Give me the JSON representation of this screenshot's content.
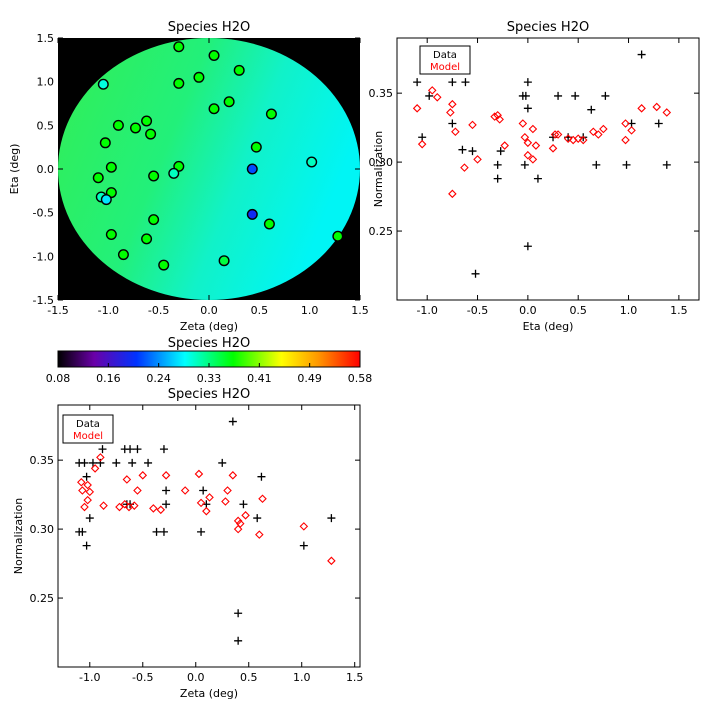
{
  "chart_data": [
    {
      "id": "map",
      "type": "scatter",
      "title": "Species H2O",
      "xlabel": "Zeta (deg)",
      "ylabel": "Eta (deg)",
      "xlim": [
        -1.5,
        1.5
      ],
      "ylim": [
        -1.5,
        1.5
      ],
      "xticks": [
        "-1.5",
        "-1.0",
        "-0.5",
        "0.0",
        "0.5",
        "1.0",
        "1.5"
      ],
      "yticks": [
        "-1.5",
        "-1.0",
        "-0.5",
        "0.0",
        "0.5",
        "1.0",
        "1.5"
      ],
      "points": [
        {
          "x": -1.05,
          "y": 0.97,
          "v": 0.3
        },
        {
          "x": -0.3,
          "y": 1.4,
          "v": 0.37
        },
        {
          "x": 0.05,
          "y": 1.3,
          "v": 0.37
        },
        {
          "x": 0.3,
          "y": 1.13,
          "v": 0.37
        },
        {
          "x": -0.1,
          "y": 1.05,
          "v": 0.37
        },
        {
          "x": -0.3,
          "y": 0.98,
          "v": 0.37
        },
        {
          "x": 0.05,
          "y": 0.69,
          "v": 0.37
        },
        {
          "x": 0.2,
          "y": 0.77,
          "v": 0.37
        },
        {
          "x": 0.62,
          "y": 0.63,
          "v": 0.37
        },
        {
          "x": -0.9,
          "y": 0.5,
          "v": 0.37
        },
        {
          "x": -0.62,
          "y": 0.55,
          "v": 0.37
        },
        {
          "x": -0.73,
          "y": 0.47,
          "v": 0.37
        },
        {
          "x": -0.58,
          "y": 0.4,
          "v": 0.37
        },
        {
          "x": -1.03,
          "y": 0.3,
          "v": 0.37
        },
        {
          "x": 0.47,
          "y": 0.25,
          "v": 0.37
        },
        {
          "x": 1.02,
          "y": 0.08,
          "v": 0.31
        },
        {
          "x": -0.97,
          "y": 0.02,
          "v": 0.37
        },
        {
          "x": -0.3,
          "y": 0.03,
          "v": 0.37
        },
        {
          "x": -0.35,
          "y": -0.05,
          "v": 0.31
        },
        {
          "x": 0.43,
          "y": 0.0,
          "v": 0.22
        },
        {
          "x": -1.1,
          "y": -0.1,
          "v": 0.37
        },
        {
          "x": -0.55,
          "y": -0.08,
          "v": 0.37
        },
        {
          "x": -0.97,
          "y": -0.27,
          "v": 0.37
        },
        {
          "x": -1.07,
          "y": -0.32,
          "v": 0.31
        },
        {
          "x": -1.02,
          "y": -0.35,
          "v": 0.28
        },
        {
          "x": 0.43,
          "y": -0.52,
          "v": 0.2
        },
        {
          "x": -0.55,
          "y": -0.58,
          "v": 0.37
        },
        {
          "x": 0.6,
          "y": -0.63,
          "v": 0.37
        },
        {
          "x": -0.97,
          "y": -0.75,
          "v": 0.37
        },
        {
          "x": -0.62,
          "y": -0.8,
          "v": 0.37
        },
        {
          "x": 1.28,
          "y": -0.77,
          "v": 0.37
        },
        {
          "x": -0.85,
          "y": -0.98,
          "v": 0.37
        },
        {
          "x": 0.15,
          "y": -1.05,
          "v": 0.35
        },
        {
          "x": -0.45,
          "y": -1.1,
          "v": 0.37
        }
      ]
    },
    {
      "id": "colorbar",
      "type": "heatmap",
      "title": "Species H2O",
      "ticks": [
        "0.08",
        "0.16",
        "0.24",
        "0.33",
        "0.41",
        "0.49",
        "0.58"
      ],
      "range": [
        0.08,
        0.58
      ]
    },
    {
      "id": "eta",
      "type": "scatter",
      "title": "Species H2O",
      "xlabel": "Eta (deg)",
      "ylabel": "Normalization",
      "xlim": [
        -1.3,
        1.7
      ],
      "ylim": [
        0.2,
        0.39
      ],
      "xticks": [
        "-1.0",
        "-0.5",
        "0.0",
        "0.5",
        "1.0",
        "1.5"
      ],
      "yticks": [
        "0.25",
        "0.30",
        "0.35"
      ],
      "legend": [
        "Data",
        "Model"
      ],
      "legend_position": "top-left",
      "series": [
        {
          "name": "Data",
          "marker": "plus",
          "color": "#000000",
          "points": [
            [
              -1.1,
              0.358
            ],
            [
              -0.98,
              0.348
            ],
            [
              -1.05,
              0.318
            ],
            [
              -0.75,
              0.358
            ],
            [
              -0.75,
              0.328
            ],
            [
              -0.62,
              0.358
            ],
            [
              -0.65,
              0.309
            ],
            [
              -0.55,
              0.308
            ],
            [
              -0.52,
              0.219
            ],
            [
              -0.3,
              0.288
            ],
            [
              -0.3,
              0.298
            ],
            [
              -0.27,
              0.308
            ],
            [
              -0.05,
              0.348
            ],
            [
              -0.02,
              0.348
            ],
            [
              0.0,
              0.358
            ],
            [
              0.0,
              0.339
            ],
            [
              -0.03,
              0.298
            ],
            [
              0.0,
              0.239
            ],
            [
              0.1,
              0.288
            ],
            [
              0.25,
              0.318
            ],
            [
              0.3,
              0.348
            ],
            [
              0.4,
              0.318
            ],
            [
              0.47,
              0.348
            ],
            [
              0.55,
              0.318
            ],
            [
              0.63,
              0.338
            ],
            [
              0.68,
              0.298
            ],
            [
              0.77,
              0.348
            ],
            [
              0.98,
              0.298
            ],
            [
              1.03,
              0.328
            ],
            [
              1.13,
              0.378
            ],
            [
              1.3,
              0.328
            ],
            [
              1.38,
              0.298
            ]
          ]
        },
        {
          "name": "Model",
          "marker": "diamond",
          "color": "#ff0000",
          "points": [
            [
              -1.1,
              0.339
            ],
            [
              -1.05,
              0.313
            ],
            [
              -0.95,
              0.352
            ],
            [
              -0.9,
              0.347
            ],
            [
              -0.75,
              0.342
            ],
            [
              -0.77,
              0.336
            ],
            [
              -0.75,
              0.277
            ],
            [
              -0.72,
              0.322
            ],
            [
              -0.63,
              0.296
            ],
            [
              -0.55,
              0.327
            ],
            [
              -0.5,
              0.302
            ],
            [
              -0.33,
              0.333
            ],
            [
              -0.3,
              0.334
            ],
            [
              -0.28,
              0.331
            ],
            [
              -0.23,
              0.312
            ],
            [
              -0.05,
              0.328
            ],
            [
              -0.03,
              0.318
            ],
            [
              0.0,
              0.314
            ],
            [
              0.0,
              0.305
            ],
            [
              0.05,
              0.324
            ],
            [
              0.05,
              0.302
            ],
            [
              0.08,
              0.312
            ],
            [
              0.25,
              0.31
            ],
            [
              0.27,
              0.32
            ],
            [
              0.3,
              0.32
            ],
            [
              0.4,
              0.317
            ],
            [
              0.45,
              0.316
            ],
            [
              0.5,
              0.317
            ],
            [
              0.55,
              0.316
            ],
            [
              0.65,
              0.322
            ],
            [
              0.7,
              0.32
            ],
            [
              0.75,
              0.324
            ],
            [
              0.97,
              0.316
            ],
            [
              0.97,
              0.328
            ],
            [
              1.03,
              0.323
            ],
            [
              1.13,
              0.339
            ],
            [
              1.28,
              0.34
            ],
            [
              1.38,
              0.336
            ]
          ]
        }
      ]
    },
    {
      "id": "zeta",
      "type": "scatter",
      "title": "Species H2O",
      "xlabel": "Zeta (deg)",
      "ylabel": "Normalization",
      "xlim": [
        -1.3,
        1.55
      ],
      "ylim": [
        0.2,
        0.39
      ],
      "xticks": [
        "-1.0",
        "-0.5",
        "0.0",
        "0.5",
        "1.0",
        "1.5"
      ],
      "yticks": [
        "0.25",
        "0.30",
        "0.35"
      ],
      "legend": [
        "Data",
        "Model"
      ],
      "legend_position": "top-left",
      "series": [
        {
          "name": "Data",
          "marker": "plus",
          "color": "#000000",
          "points": [
            [
              -1.1,
              0.348
            ],
            [
              -1.05,
              0.348
            ],
            [
              -0.97,
              0.348
            ],
            [
              -1.1,
              0.298
            ],
            [
              -1.07,
              0.298
            ],
            [
              -1.03,
              0.338
            ],
            [
              -1.03,
              0.288
            ],
            [
              -1.0,
              0.308
            ],
            [
              -0.9,
              0.348
            ],
            [
              -0.88,
              0.358
            ],
            [
              -0.75,
              0.348
            ],
            [
              -0.67,
              0.358
            ],
            [
              -0.62,
              0.358
            ],
            [
              -0.55,
              0.358
            ],
            [
              -0.6,
              0.348
            ],
            [
              -0.3,
              0.358
            ],
            [
              -0.45,
              0.348
            ],
            [
              -0.37,
              0.298
            ],
            [
              -0.3,
              0.298
            ],
            [
              -0.28,
              0.328
            ],
            [
              -0.28,
              0.318
            ],
            [
              -0.65,
              0.318
            ],
            [
              -0.62,
              0.318
            ],
            [
              0.05,
              0.298
            ],
            [
              0.07,
              0.328
            ],
            [
              0.1,
              0.318
            ],
            [
              0.25,
              0.348
            ],
            [
              0.35,
              0.378
            ],
            [
              0.4,
              0.239
            ],
            [
              0.4,
              0.219
            ],
            [
              0.45,
              0.318
            ],
            [
              0.58,
              0.308
            ],
            [
              0.62,
              0.338
            ],
            [
              1.02,
              0.288
            ],
            [
              1.28,
              0.308
            ]
          ]
        },
        {
          "name": "Model",
          "marker": "diamond",
          "color": "#ff0000",
          "points": [
            [
              -1.08,
              0.334
            ],
            [
              -1.07,
              0.328
            ],
            [
              -1.05,
              0.316
            ],
            [
              -1.02,
              0.332
            ],
            [
              -1.02,
              0.321
            ],
            [
              -1.0,
              0.327
            ],
            [
              -0.95,
              0.344
            ],
            [
              -0.9,
              0.352
            ],
            [
              -0.87,
              0.317
            ],
            [
              -0.72,
              0.316
            ],
            [
              -0.67,
              0.318
            ],
            [
              -0.65,
              0.336
            ],
            [
              -0.63,
              0.316
            ],
            [
              -0.58,
              0.317
            ],
            [
              -0.55,
              0.328
            ],
            [
              -0.5,
              0.339
            ],
            [
              -0.4,
              0.315
            ],
            [
              -0.33,
              0.314
            ],
            [
              -0.28,
              0.339
            ],
            [
              -0.1,
              0.328
            ],
            [
              0.03,
              0.34
            ],
            [
              0.05,
              0.319
            ],
            [
              0.1,
              0.313
            ],
            [
              0.13,
              0.323
            ],
            [
              0.28,
              0.32
            ],
            [
              0.3,
              0.328
            ],
            [
              0.35,
              0.339
            ],
            [
              0.4,
              0.306
            ],
            [
              0.4,
              0.3
            ],
            [
              0.42,
              0.304
            ],
            [
              0.47,
              0.31
            ],
            [
              0.6,
              0.296
            ],
            [
              0.63,
              0.322
            ],
            [
              1.02,
              0.302
            ],
            [
              1.28,
              0.277
            ]
          ]
        }
      ]
    }
  ]
}
